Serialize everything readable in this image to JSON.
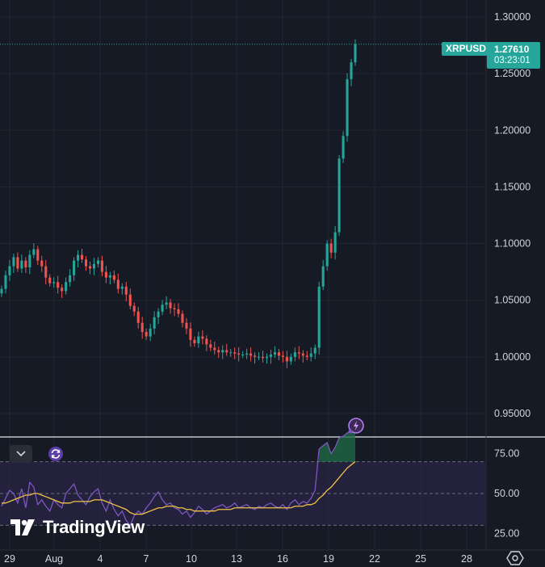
{
  "chart_data": {
    "type": "candlestick",
    "symbol": "XRPUSD",
    "last_price": "1.27610",
    "countdown": "03:23:01",
    "price_axis": {
      "ticks": [
        "1.30000",
        "1.25000",
        "1.20000",
        "1.15000",
        "1.10000",
        "1.05000",
        "1.00000",
        "0.95000"
      ],
      "values": [
        1.3,
        1.25,
        1.2,
        1.15,
        1.1,
        1.05,
        1.0,
        0.95
      ],
      "range": [
        0.95,
        1.3
      ]
    },
    "time_axis": {
      "ticks": [
        "29",
        "Aug",
        "4",
        "7",
        "10",
        "13",
        "16",
        "19",
        "22",
        "25",
        "28"
      ]
    },
    "closes": [
      1.06,
      1.072,
      1.08,
      1.088,
      1.078,
      1.085,
      1.079,
      1.09,
      1.095,
      1.085,
      1.08,
      1.07,
      1.065,
      1.066,
      1.061,
      1.058,
      1.066,
      1.072,
      1.085,
      1.09,
      1.086,
      1.08,
      1.078,
      1.082,
      1.085,
      1.075,
      1.07,
      1.072,
      1.068,
      1.06,
      1.062,
      1.055,
      1.045,
      1.04,
      1.03,
      1.022,
      1.018,
      1.025,
      1.035,
      1.04,
      1.046,
      1.048,
      1.043,
      1.042,
      1.038,
      1.03,
      1.025,
      1.015,
      1.012,
      1.018,
      1.016,
      1.011,
      1.008,
      1.006,
      1.004,
      1.006,
      1.004,
      1.004,
      1.003,
      1.002,
      1.002,
      1.003,
      1.001,
      1.0,
      1.0,
      0.999,
      1.0,
      1.002,
      1.004,
      1.001,
      1.0,
      0.996,
      1.0,
      1.004,
      1.003,
      1.001,
      1.0,
      1.003,
      1.008,
      1.062,
      1.08,
      1.1,
      1.092,
      1.11,
      1.175,
      1.195,
      1.245,
      1.26,
      1.276
    ],
    "rsi": {
      "ticks": [
        "75.00",
        "50.00",
        "25.00"
      ],
      "values": [
        75,
        50,
        25
      ],
      "range": [
        15,
        85
      ],
      "bands": [
        70,
        50,
        30
      ],
      "rsi_values": [
        42,
        47,
        52,
        50,
        44,
        53,
        41,
        57,
        54,
        43,
        46,
        42,
        39,
        46,
        43,
        41,
        50,
        53,
        56,
        49,
        46,
        43,
        48,
        51,
        53,
        44,
        39,
        46,
        40,
        36,
        39,
        33,
        30,
        36,
        39,
        37,
        41,
        44,
        48,
        51,
        46,
        43,
        44,
        41,
        40,
        37,
        39,
        35,
        38,
        42,
        40,
        37,
        39,
        41,
        42,
        43,
        41,
        42,
        44,
        41,
        42,
        43,
        41,
        40,
        42,
        41,
        43,
        44,
        42,
        41,
        43,
        40,
        44,
        46,
        43,
        45,
        44,
        47,
        52,
        78,
        80,
        82,
        75,
        79,
        85,
        86,
        88,
        89,
        90
      ],
      "ma_values": [
        44,
        44,
        45,
        46,
        47,
        48,
        49,
        49,
        50,
        50,
        49,
        48,
        47,
        46,
        45,
        44,
        44,
        44,
        45,
        45,
        45,
        45,
        45,
        46,
        46,
        46,
        45,
        44,
        43,
        42,
        41,
        40,
        38,
        37,
        37,
        37,
        38,
        39,
        40,
        41,
        41,
        42,
        42,
        42,
        41,
        41,
        40,
        40,
        39,
        39,
        39,
        39,
        39,
        39,
        40,
        40,
        40,
        40,
        41,
        41,
        41,
        41,
        41,
        41,
        41,
        41,
        41,
        41,
        41,
        41,
        41,
        41,
        41,
        42,
        42,
        42,
        43,
        43,
        44,
        47,
        49,
        52,
        54,
        57,
        60,
        63,
        66,
        68,
        70
      ]
    },
    "colors": {
      "up": "#26a69a",
      "down": "#ef5350",
      "background": "#161a25",
      "grid": "#222632",
      "rsi_line": "#7e57c2",
      "rsi_ma": "#f0c24a",
      "rsi_band": "#2a2545",
      "axis_text": "#d1d4dc"
    }
  },
  "branding": {
    "logo_text": "TradingView"
  },
  "icons": {
    "collapse": "chevron-down-icon",
    "cycle": "refresh-cycle-icon",
    "flash": "lightning-icon",
    "settings": "settings-icon"
  }
}
